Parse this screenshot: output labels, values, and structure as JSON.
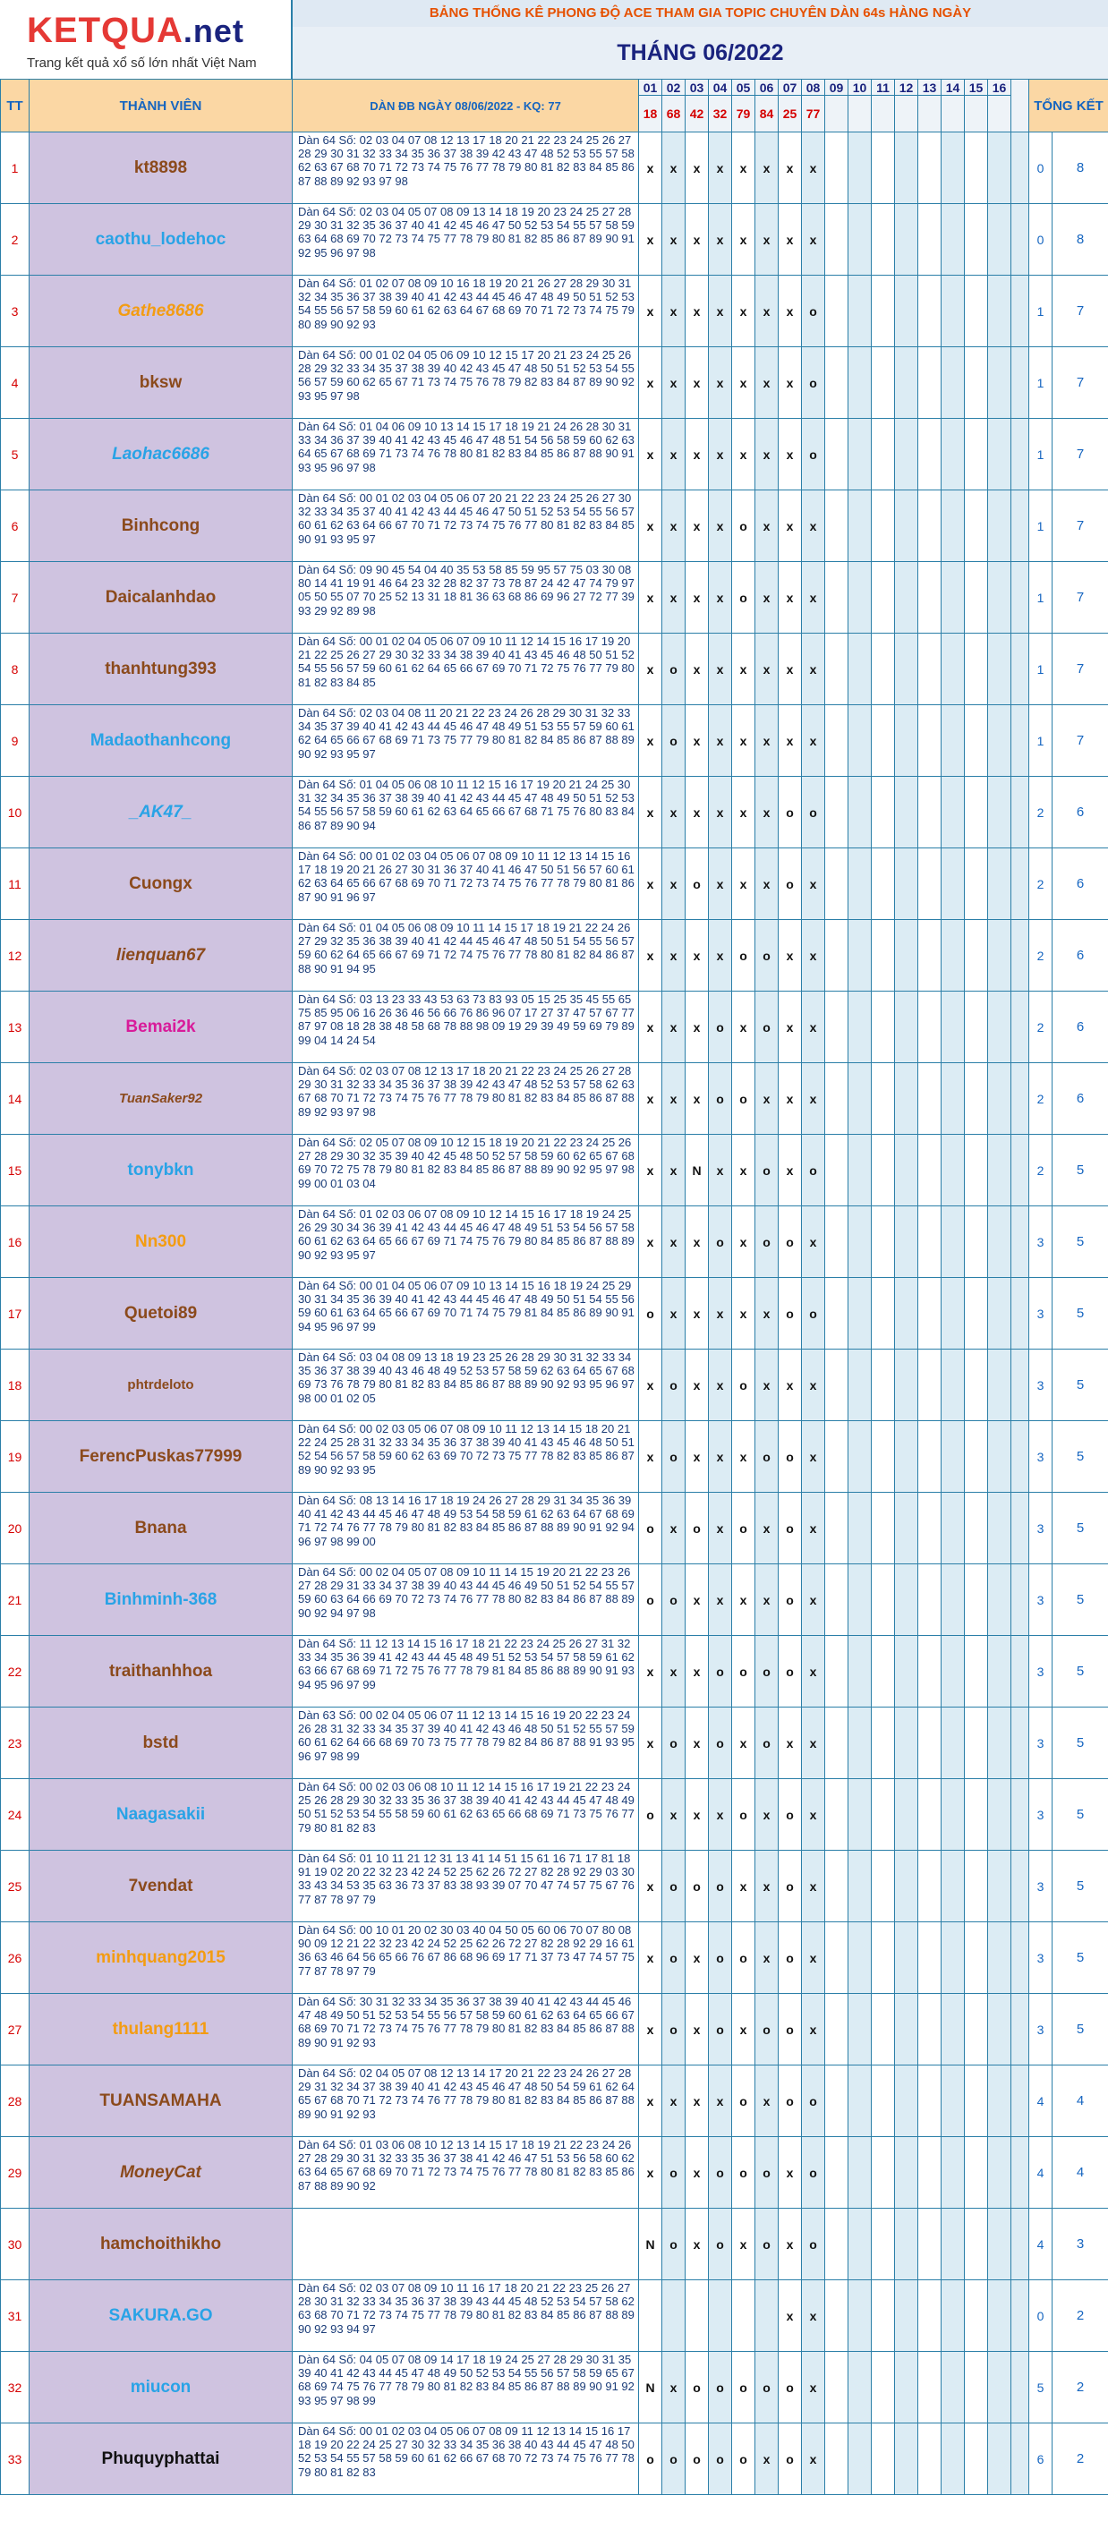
{
  "logo": {
    "brand": "KETQUA",
    "tld": ".net",
    "tagline": "Trang kết quả xổ số lớn nhất Việt Nam"
  },
  "banner": "BẢNG THỐNG KÊ PHONG ĐỘ ACE THAM GIA TOPIC CHUYÊN DÀN 64s HÀNG NGÀY",
  "month_title": "THÁNG 06/2022",
  "headers": {
    "tt": "TT",
    "member": "THÀNH VIÊN",
    "dan": "DÀN ĐB NGÀY 08/06/2022 - KQ: 77",
    "total": "TỔNG KẾT"
  },
  "day_numbers": [
    "01",
    "02",
    "03",
    "04",
    "05",
    "06",
    "07",
    "08",
    "09",
    "10",
    "11",
    "12",
    "13",
    "14",
    "15",
    "16"
  ],
  "day_results": [
    "18",
    "68",
    "42",
    "32",
    "79",
    "84",
    "25",
    "77",
    "",
    "",
    "",
    "",
    "",
    "",
    "",
    ""
  ],
  "rows": [
    {
      "tt": "1",
      "name": "kt8898",
      "color": "brown",
      "style": "",
      "dan": "Dàn 64 Số: 02 03 04 07 08 12 13 17 18 20 21 22 23 24 25 26 27 28 29 30 31 32 33 34 35 36 37 38 39 42 43 47 48 52 53 55 57 58 62 63 67 68 70 71 72 73 74 75 76 77 78 79 80 81 82 83 84 85 86 87 88 89 92 93 97 98",
      "marks": [
        "x",
        "x",
        "x",
        "x",
        "x",
        "x",
        "x",
        "x"
      ],
      "score": "0",
      "total": "8"
    },
    {
      "tt": "2",
      "name": "caothu_lodehoc",
      "color": "blue",
      "style": "",
      "dan": "Dàn 64 Số: 02 03 04 05 07 08 09 13 14 18 19 20 23 24 25 27 28 29 30 31 32 35 36 37 40 41 42 45 46 47 50 52 53 54 55 57 58 59 63 64 68 69 70 72 73 74 75 77 78 79 80 81 82 85 86 87 89 90 91 92 95 96 97 98",
      "marks": [
        "x",
        "x",
        "x",
        "x",
        "x",
        "x",
        "x",
        "x"
      ],
      "score": "0",
      "total": "8"
    },
    {
      "tt": "3",
      "name": "Gathe8686",
      "color": "orange",
      "style": "it",
      "dan": "Dàn 64 Số: 01 02 07 08 09 10 16 18 19 20 21 26 27 28 29 30 31 32 34 35 36 37 38 39 40 41 42 43 44 45 46 47 48 49 50 51 52 53 54 55 56 57 58 59 60 61 62 63 64 67 68 69 70 71 72 73 74 75 79 80 89 90 92 93",
      "marks": [
        "x",
        "x",
        "x",
        "x",
        "x",
        "x",
        "x",
        "o"
      ],
      "score": "1",
      "total": "7"
    },
    {
      "tt": "4",
      "name": "bksw",
      "color": "brown",
      "style": "",
      "dan": "Dàn 64 Số: 00 01 02 04 05 06 09 10 12 15 17 20 21 23 24 25 26 28 29 32 33 34 35 37 38 39 40 42 43 45 47 48 50 51 52 53 54 55 56 57 59 60 62 65 67 71 73 74 75 76 78 79 82 83 84 87 89 90 92 93 95 97 98",
      "marks": [
        "x",
        "x",
        "x",
        "x",
        "x",
        "x",
        "x",
        "o"
      ],
      "score": "1",
      "total": "7"
    },
    {
      "tt": "5",
      "name": "Laohac6686",
      "color": "blue",
      "style": "it",
      "dan": "Dàn 64 Số: 01 04 06 09 10 13 14 15 17 18 19 21 24 26 28 30 31 33 34 36 37 39 40 41 42 43 45 46 47 48 51 54 56 58 59 60 62 63 64 65 67 68 69 71 73 74 76 78 80 81 82 83 84 85 86 87 88 90 91 93 95 96 97 98",
      "marks": [
        "x",
        "x",
        "x",
        "x",
        "x",
        "x",
        "x",
        "o"
      ],
      "score": "1",
      "total": "7"
    },
    {
      "tt": "6",
      "name": "Binhcong",
      "color": "brown",
      "style": "",
      "dan": "Dàn 64 Số: 00 01 02 03 04 05 06 07 20 21 22 23 24 25 26 27 30 32 33 34 35 37 40 41 42 43 44 45 46 47 50 51 52 53 54 55 56 57 60 61 62 63 64 66 67 70 71 72 73 74 75 76 77 80 81 82 83 84 85 90 91 93 95 97",
      "marks": [
        "x",
        "x",
        "x",
        "x",
        "o",
        "x",
        "x",
        "x"
      ],
      "score": "1",
      "total": "7"
    },
    {
      "tt": "7",
      "name": "Daicalanhdao",
      "color": "brown",
      "style": "",
      "dan": "Dàn 64 Số: 09 90 45 54 04 40 35 53 58 85 59 95 57 75 03 30 08 80 14 41 19 91 46 64 23 32 28 82 37 73 78 87 24 42 47 74 79 97 05 50 55 07 70 25 52 13 31 18 81 36 63 68 86 69 96 27 72 77 39 93 29 92 89 98",
      "marks": [
        "x",
        "x",
        "x",
        "x",
        "o",
        "x",
        "x",
        "x"
      ],
      "score": "1",
      "total": "7"
    },
    {
      "tt": "8",
      "name": "thanhtung393",
      "color": "brown",
      "style": "",
      "dan": "Dàn 64 Số: 00 01 02 04 05 06 07 09 10 11 12 14 15 16 17 19 20 21 22 25 26 27 29 30 32 33 34 38 39 40 41 43 45 46 48 50 51 52 54 55 56 57 59 60 61 62 64 65 66 67 69 70 71 72 75 76 77 79 80 81 82 83 84 85",
      "marks": [
        "x",
        "o",
        "x",
        "x",
        "x",
        "x",
        "x",
        "x"
      ],
      "score": "1",
      "total": "7"
    },
    {
      "tt": "9",
      "name": "Madaothanhcong",
      "color": "blue",
      "style": "",
      "dan": "Dàn 64 Số: 02 03 04 08 11 20 21 22 23 24 26 28 29 30 31 32 33 34 35 37 39 40 41 42 43 44 45 46 47 48 49 51 53 55 57 59 60 61 62 64 65 66 67 68 69 71 73 75 77 79 80 81 82 84 85 86 87 88 89 90 92 93 95 97",
      "marks": [
        "x",
        "o",
        "x",
        "x",
        "x",
        "x",
        "x",
        "x"
      ],
      "score": "1",
      "total": "7"
    },
    {
      "tt": "10",
      "name": "_AK47_",
      "color": "blue",
      "style": "it",
      "dan": "Dàn 64 Số: 01 04 05 06 08 10 11 12 15 16 17 19 20 21 24 25 30 31 32 34 35 36 37 38 39 40 41 42 43 44 45 47 48 49 50 51 52 53 54 55 56 57 58 59 60 61 62 63 64 65 66 67 68 71 75 76 80 83 84 86 87 89 90 94",
      "marks": [
        "x",
        "x",
        "x",
        "x",
        "x",
        "x",
        "o",
        "o"
      ],
      "score": "2",
      "total": "6"
    },
    {
      "tt": "11",
      "name": "Cuongx",
      "color": "brown",
      "style": "",
      "dan": "Dàn 64 Số: 00 01 02 03 04 05 06 07 08 09 10 11 12 13 14 15 16 17 18 19 20 21 26 27 30 31 36 37 40 41 46 47 50 51 56 57 60 61 62 63 64 65 66 67 68 69 70 71 72 73 74 75 76 77 78 79 80 81 86 87 90 91 96 97",
      "marks": [
        "x",
        "x",
        "o",
        "x",
        "x",
        "x",
        "o",
        "x"
      ],
      "score": "2",
      "total": "6"
    },
    {
      "tt": "12",
      "name": "lienquan67",
      "color": "brown",
      "style": "it",
      "dan": "Dàn 64 Số: 01 04 05 06 08 09 10 11 14 15 17 18 19 21 22 24 26 27 29 32 35 36 38 39 40 41 42 44 45 46 47 48 50 51 54 55 56 57 59 60 62 64 65 66 67 69 71 72 74 75 76 77 78 80 81 82 84 86 87 88 90 91 94 95",
      "marks": [
        "x",
        "x",
        "x",
        "x",
        "o",
        "o",
        "x",
        "x"
      ],
      "score": "2",
      "total": "6"
    },
    {
      "tt": "13",
      "name": "Bemai2k",
      "color": "magenta",
      "style": "",
      "dan": "Dàn 64 Số: 03 13 23 33 43 53 63 73 83 93 05 15 25 35 45 55 65 75 85 95 06 16 26 36 46 56 66 76 86 96 07 17 27 37 47 57 67 77 87 97 08 18 28 38 48 58 68 78 88 98 09 19 29 39 49 59 69 79 89 99 04 14 24 54",
      "marks": [
        "x",
        "x",
        "x",
        "o",
        "x",
        "o",
        "x",
        "x"
      ],
      "score": "2",
      "total": "6"
    },
    {
      "tt": "14",
      "name": "TuanSaker92",
      "color": "brown",
      "style": "it sm",
      "dan": "Dàn 64 Số: 02 03 07 08 12 13 17 18 20 21 22 23 24 25 26 27 28 29 30 31 32 33 34 35 36 37 38 39 42 43 47 48 52 53 57 58 62 63 67 68 70 71 72 73 74 75 76 77 78 79 80 81 82 83 84 85 86 87 88 89 92 93 97 98",
      "marks": [
        "x",
        "x",
        "x",
        "o",
        "o",
        "x",
        "x",
        "x"
      ],
      "score": "2",
      "total": "6"
    },
    {
      "tt": "15",
      "name": "tonybkn",
      "color": "blue",
      "style": "",
      "dan": "Dàn 64 Số: 02 05 07 08 09 10 12 15 18 19 20 21 22 23 24 25 26 27 28 29 30 32 35 39 40 42 45 48 50 52 57 58 59 60 62 65 67 68 69 70 72 75 78 79 80 81 82 83 84 85 86 87 88 89 90 92 95 97 98 99 00 01 03 04",
      "marks": [
        "x",
        "x",
        "N",
        "x",
        "x",
        "o",
        "x",
        "o"
      ],
      "score": "2",
      "total": "5"
    },
    {
      "tt": "16",
      "name": "Nn300",
      "color": "orange",
      "style": "",
      "dan": "Dàn 64 Số: 01 02 03 06 07 08 09 10 12 14 15 16 17 18 19 24 25 26 29 30 34 36 39 41 42 43 44 45 46 47 48 49 51 53 54 56 57 58 60 61 62 63 64 65 66 67 69 71 74 75 76 79 80 84 85 86 87 88 89 90 92 93 95 97",
      "marks": [
        "x",
        "x",
        "x",
        "o",
        "x",
        "o",
        "o",
        "x"
      ],
      "score": "3",
      "total": "5"
    },
    {
      "tt": "17",
      "name": "Quetoi89",
      "color": "brown",
      "style": "",
      "dan": "Dàn 64 Số: 00 01 04 05 06 07 09 10 13 14 15 16 18 19 24 25 29 30 31 34 35 36 39 40 41 42 43 44 45 46 47 48 49 50 51 54 55 56 59 60 61 63 64 65 66 67 69 70 71 74 75 79 81 84 85 86 89 90 91 94 95 96 97 99",
      "marks": [
        "o",
        "x",
        "x",
        "x",
        "x",
        "x",
        "o",
        "o"
      ],
      "score": "3",
      "total": "5"
    },
    {
      "tt": "18",
      "name": "phtrdeloto",
      "color": "brown",
      "style": "sm",
      "dan": "Dàn 64 Số: 03 04 08 09 13 18 19 23 25 26 28 29 30 31 32 33 34 35 36 37 38 39 40 43 46 48 49 52 53 57 58 59 62 63 64 65 67 68 69 73 76 78 79 80 81 82 83 84 85 86 87 88 89 90 92 93 95 96 97 98 00 01 02 05",
      "marks": [
        "x",
        "o",
        "x",
        "x",
        "o",
        "x",
        "x",
        "x"
      ],
      "score": "3",
      "total": "5"
    },
    {
      "tt": "19",
      "name": "FerencPuskas77999",
      "color": "brown",
      "style": "",
      "dan": "Dàn 64 Số: 00 02 03 05 06 07 08 09 10 11 12 13 14 15 18 20 21 22 24 25 28 31 32 33 34 35 36 37 38 39 40 41 43 45 46 48 50 51 52 54 56 57 58 59 60 62 63 69 70 72 73 75 77 78 82 83 85 86 87 89 90 92 93 95",
      "marks": [
        "x",
        "o",
        "x",
        "x",
        "x",
        "o",
        "o",
        "x"
      ],
      "score": "3",
      "total": "5"
    },
    {
      "tt": "20",
      "name": "Bnana",
      "color": "brown",
      "style": "",
      "dan": "Dàn 64 Số: 08 13 14 16 17 18 19 24 26 27 28 29 31 34 35 36 39 40 41 42 43 44 45 46 47 48 49 53 54 58 59 61 62 63 64 67 68 69 71 72 74 76 77 78 79 80 81 82 83 84 85 86 87 88 89 90 91 92 94 96 97 98 99 00",
      "marks": [
        "o",
        "x",
        "o",
        "x",
        "o",
        "x",
        "o",
        "x"
      ],
      "score": "3",
      "total": "5"
    },
    {
      "tt": "21",
      "name": "Binhminh-368",
      "color": "blue",
      "style": "",
      "dan": "Dàn 64 Số: 00 02 04 05 07 08 09 10 11 14 15 19 20 21 22 23 26 27 28 29 31 33 34 37 38 39 40 43 44 45 46 49 50 51 52 54 55 57 59 60 63 64 66 69 70 72 73 74 76 77 78 80 82 83 84 86 87 88 89 90 92 94 97 98",
      "marks": [
        "o",
        "o",
        "x",
        "x",
        "x",
        "x",
        "o",
        "x"
      ],
      "score": "3",
      "total": "5"
    },
    {
      "tt": "22",
      "name": "traithanhhoa",
      "color": "brown",
      "style": "",
      "dan": "Dàn 64 Số: 11 12 13 14 15 16 17 18 21 22 23 24 25 26 27 31 32 33 34 35 36 39 41 42 43 44 45 48 49 51 52 53 54 57 58 59 61 62 63 66 67 68 69 71 72 75 76 77 78 79 81 84 85 86 88 89 90 91 93 94 95 96 97 99",
      "marks": [
        "x",
        "x",
        "x",
        "o",
        "o",
        "o",
        "o",
        "x"
      ],
      "score": "3",
      "total": "5"
    },
    {
      "tt": "23",
      "name": "bstd",
      "color": "brown",
      "style": "",
      "dan": "Dàn 63 Số: 00 02 04 05 06 07 11 12 13 14 15 16 19 20 22 23 24 26 28 31 32 33 34 35 37 39 40 41 42 43 46 48 50 51 52 55 57 59 60 61 62 64 66 68 69 70 73 75 77 78 79 82 84 86 87 88 91 93 95 96 97 98 99",
      "marks": [
        "x",
        "o",
        "x",
        "o",
        "x",
        "o",
        "x",
        "x"
      ],
      "score": "3",
      "total": "5"
    },
    {
      "tt": "24",
      "name": "Naagasakii",
      "color": "blue",
      "style": "",
      "dan": "Dàn 64 Số: 00 02 03 06 08 10 11 12 14 15 16 17 19 21 22 23 24 25 26 28 29 30 32 33 35 36 37 38 39 40 41 42 43 44 45 47 48 49 50 51 52 53 54 55 58 59 60 61 62 63 65 66 68 69 71 73 75 76 77 79 80 81 82 83",
      "marks": [
        "o",
        "x",
        "x",
        "x",
        "o",
        "x",
        "o",
        "x"
      ],
      "score": "3",
      "total": "5"
    },
    {
      "tt": "25",
      "name": "7vendat",
      "color": "brown",
      "style": "",
      "dan": "Dàn 64 Số: 01 10 11 21 12 31 13 41 14 51 15 61 16 71 17 81 18 91 19 02 20 22 32 23 42 24 52 25 62 26 72 27 82 28 92 29 03 30 33 43 34 53 35 63 36 73 37 83 38 93 39 07 70 47 74 57 75 67 76 77 87 78 97 79",
      "marks": [
        "x",
        "o",
        "o",
        "o",
        "x",
        "x",
        "o",
        "x"
      ],
      "score": "3",
      "total": "5"
    },
    {
      "tt": "26",
      "name": "minhquang2015",
      "color": "orange",
      "style": "",
      "dan": "Dàn 64 Số: 00 10 01 20 02 30 03 40 04 50 05 60 06 70 07 80 08 90 09 12 21 22 32 23 42 24 52 25 62 26 72 27 82 28 92 29 16 61 36 63 46 64 56 65 66 76 67 86 68 96 69 17 71 37 73 47 74 57 75 77 87 78 97 79",
      "marks": [
        "x",
        "o",
        "x",
        "o",
        "o",
        "x",
        "o",
        "x"
      ],
      "score": "3",
      "total": "5"
    },
    {
      "tt": "27",
      "name": "thulang1111",
      "color": "orange",
      "style": "",
      "dan": "Dàn 64 Số: 30 31 32 33 34 35 36 37 38 39 40 41 42 43 44 45 46 47 48 49 50 51 52 53 54 55 56 57 58 59 60 61 62 63 64 65 66 67 68 69 70 71 72 73 74 75 76 77 78 79 80 81 82 83 84 85 86 87 88 89 90 91 92 93",
      "marks": [
        "x",
        "o",
        "x",
        "o",
        "x",
        "o",
        "o",
        "x"
      ],
      "score": "3",
      "total": "5"
    },
    {
      "tt": "28",
      "name": "TUANSAMAHA",
      "color": "brown",
      "style": "",
      "dan": "Dàn 64 Số: 02 04 05 07 08 12 13 14 17 20 21 22 23 24 26 27 28 29 31 32 34 37 38 39 40 41 42 43 45 46 47 48 50 54 59 61 62 64 65 67 68 70 71 72 73 74 76 77 78 79 80 81 82 83 84 85 86 87 88 89 90 91 92 93",
      "marks": [
        "x",
        "x",
        "x",
        "x",
        "o",
        "x",
        "o",
        "o"
      ],
      "score": "4",
      "total": "4"
    },
    {
      "tt": "29",
      "name": "MoneyCat",
      "color": "brown",
      "style": "it",
      "dan": "Dàn 64 Số: 01 03 06 08 10 12 13 14 15 17 18 19 21 22 23 24 26 27 28 29 30 31 32 33 35 36 37 38 41 42 46 47 51 53 56 58 60 62 63 64 65 67 68 69 70 71 72 73 74 75 76 77 78 80 81 82 83 85 86 87 88 89 90 92",
      "marks": [
        "x",
        "o",
        "x",
        "o",
        "o",
        "o",
        "x",
        "o"
      ],
      "score": "4",
      "total": "4"
    },
    {
      "tt": "30",
      "name": "hamchoithikho",
      "color": "brown",
      "style": "",
      "dan": "",
      "marks": [
        "N",
        "o",
        "x",
        "o",
        "x",
        "o",
        "x",
        "o"
      ],
      "score": "4",
      "total": "3"
    },
    {
      "tt": "31",
      "name": "SAKURA.GO",
      "color": "blue",
      "style": "",
      "dan": "Dàn 64 Số: 02 03 07 08 09 10 11 16 17 18 20 21 22 23 25 26 27 28 30 31 32 33 34 35 36 37 38 39 43 44 45 48 52 53 54 57 58 62 63 68 70 71 72 73 74 75 77 78 79 80 81 82 83 84 85 86 87 88 89 90 92 93 94 97",
      "marks": [
        "",
        "",
        "",
        "",
        "",
        "",
        "x",
        "x"
      ],
      "score": "0",
      "total": "2"
    },
    {
      "tt": "32",
      "name": "miucon",
      "color": "blue",
      "style": "",
      "dan": "Dàn 64 Số: 04 05 07 08 09 14 17 18 19 24 25 27 28 29 30 31 35 39 40 41 42 43 44 45 47 48 49 50 52 53 54 55 56 57 58 59 65 67 68 69 74 75 76 77 78 79 80 81 82 83 84 85 86 87 88 89 90 91 92 93 95 97 98 99",
      "marks": [
        "N",
        "x",
        "o",
        "o",
        "o",
        "o",
        "o",
        "x"
      ],
      "score": "5",
      "total": "2"
    },
    {
      "tt": "33",
      "name": "Phuquyphattai",
      "color": "black",
      "style": "",
      "dan": "Dàn 64 Số: 00 01 02 03 04 05 06 07 08 09 11 12 13 14 15 16 17 18 19 20 22 24 25 27 30 32 33 34 35 36 38 40 43 44 45 47 48 50 52 53 54 55 57 58 59 60 61 62 66 67 68 70 72 73 74 75 76 77 78 79 80 81 82 83",
      "marks": [
        "o",
        "o",
        "o",
        "o",
        "o",
        "x",
        "o",
        "x"
      ],
      "score": "6",
      "total": "2"
    }
  ]
}
